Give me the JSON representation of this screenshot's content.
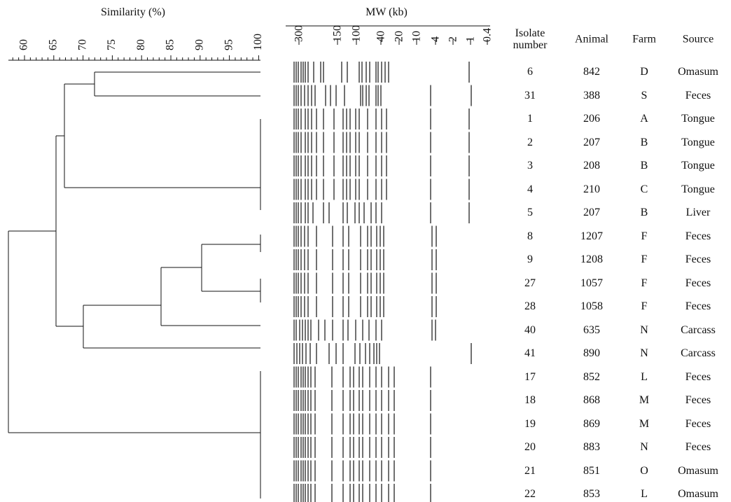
{
  "similarity": {
    "title": "Similarity (%)",
    "ticks": [
      "60",
      "65",
      "70",
      "75",
      "80",
      "85",
      "90",
      "95",
      "100"
    ]
  },
  "mw": {
    "title": "MW (kb)",
    "ticks": [
      "300",
      "150",
      "100",
      "40",
      "20",
      "10",
      "4",
      "2",
      "1",
      "0.4"
    ]
  },
  "table": {
    "headers": [
      "Isolate number",
      "Animal",
      "Farm",
      "Source"
    ],
    "rows": [
      [
        "6",
        "842",
        "D",
        "Omasum"
      ],
      [
        "31",
        "388",
        "S",
        "Feces"
      ],
      [
        "1",
        "206",
        "A",
        "Tongue"
      ],
      [
        "2",
        "207",
        "B",
        "Tongue"
      ],
      [
        "3",
        "208",
        "B",
        "Tongue"
      ],
      [
        "4",
        "210",
        "C",
        "Tongue"
      ],
      [
        "5",
        "207",
        "B",
        "Liver"
      ],
      [
        "8",
        "1207",
        "F",
        "Feces"
      ],
      [
        "9",
        "1208",
        "F",
        "Feces"
      ],
      [
        "27",
        "1057",
        "F",
        "Feces"
      ],
      [
        "28",
        "1058",
        "F",
        "Feces"
      ],
      [
        "40",
        "635",
        "N",
        "Carcass"
      ],
      [
        "41",
        "890",
        "N",
        "Carcass"
      ],
      [
        "17",
        "852",
        "L",
        "Feces"
      ],
      [
        "18",
        "868",
        "M",
        "Feces"
      ],
      [
        "19",
        "869",
        "M",
        "Feces"
      ],
      [
        "20",
        "883",
        "N",
        "Feces"
      ],
      [
        "21",
        "851",
        "O",
        "Omasum"
      ],
      [
        "22",
        "853",
        "L",
        "Omasum"
      ]
    ]
  }
}
